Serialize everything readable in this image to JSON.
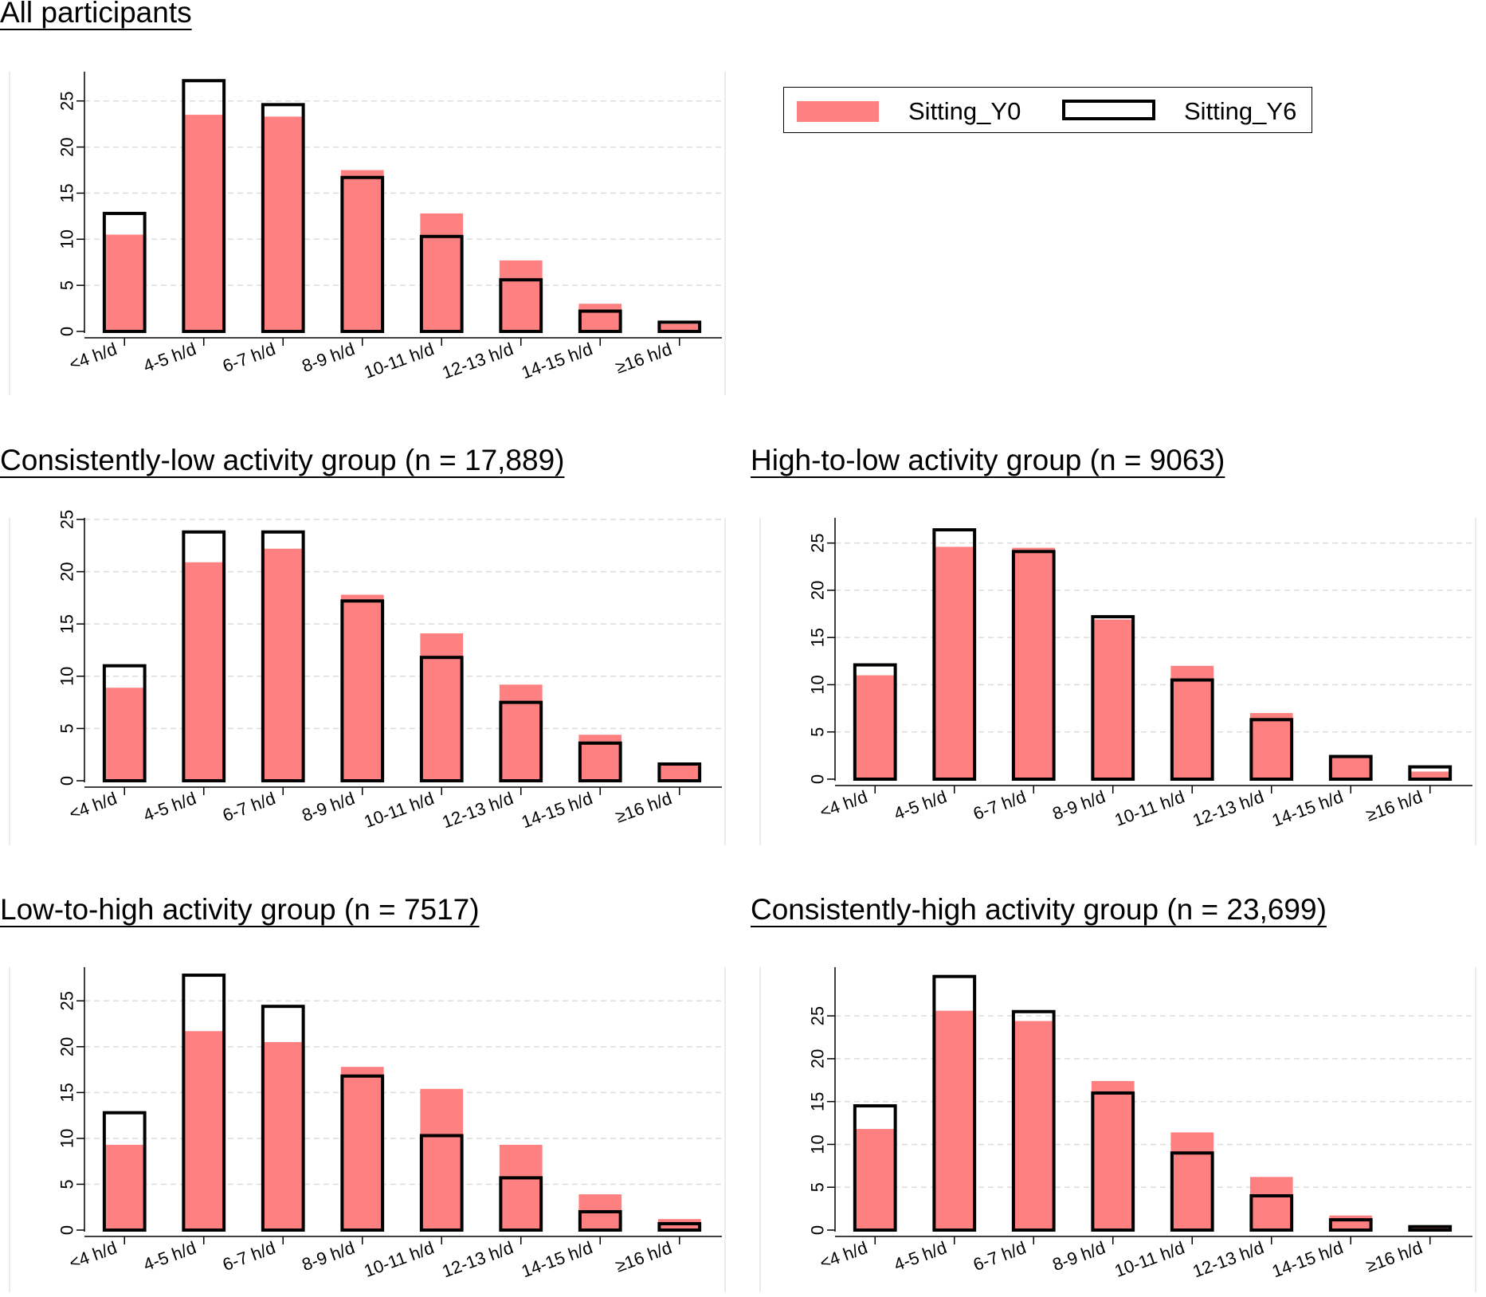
{
  "figure": {
    "panels": [
      {
        "title": "All participants"
      },
      {
        "title": "Consistently-low activity group (n = 17,889)"
      },
      {
        "title": "High-to-low activity group (n = 9063)"
      },
      {
        "title": "Low-to-high activity group (n = 7517)"
      },
      {
        "title": "Consistently-high activity group (n = 23,699)"
      }
    ],
    "legend": {
      "items": [
        "Sitting_Y0",
        "Sitting_Y6"
      ]
    },
    "colors": {
      "Sitting_Y0": "#ff8080",
      "Sitting_Y6_outline": "#000000",
      "grid": "#dcdcdc"
    }
  },
  "chart_data": [
    {
      "type": "bar",
      "title": "All participants",
      "categories": [
        "<4 h/d",
        "4-5 h/d",
        "6-7 h/d",
        "8-9 h/d",
        "10-11 h/d",
        "12-13 h/d",
        "14-15 h/d",
        "≥16 h/d"
      ],
      "series": [
        {
          "name": "Sitting_Y0",
          "values": [
            10.5,
            23.5,
            23.3,
            17.5,
            12.8,
            7.7,
            3.0,
            0.8
          ]
        },
        {
          "name": "Sitting_Y6",
          "values": [
            12.8,
            27.2,
            24.6,
            16.7,
            10.3,
            5.6,
            2.2,
            1.0
          ]
        }
      ],
      "yticks": [
        0,
        5,
        10,
        15,
        20,
        25
      ],
      "ylim": [
        0,
        28
      ],
      "grid": true
    },
    {
      "type": "bar",
      "title": "Consistently-low activity group (n = 17,889)",
      "categories": [
        "<4 h/d",
        "4-5 h/d",
        "6-7 h/d",
        "8-9 h/d",
        "10-11 h/d",
        "12-13 h/d",
        "14-15 h/d",
        "≥16 h/d"
      ],
      "series": [
        {
          "name": "Sitting_Y0",
          "values": [
            8.9,
            20.9,
            22.2,
            17.8,
            14.1,
            9.2,
            4.4,
            1.6
          ]
        },
        {
          "name": "Sitting_Y6",
          "values": [
            11.0,
            23.8,
            23.8,
            17.2,
            11.8,
            7.5,
            3.6,
            1.6
          ]
        }
      ],
      "yticks": [
        0,
        5,
        10,
        15,
        20,
        25
      ],
      "ylim": [
        0,
        25
      ],
      "grid": true
    },
    {
      "type": "bar",
      "title": "High-to-low activity group (n = 9063)",
      "categories": [
        "<4 h/d",
        "4-5 h/d",
        "6-7 h/d",
        "8-9 h/d",
        "10-11 h/d",
        "12-13 h/d",
        "14-15 h/d",
        "≥16 h/d"
      ],
      "series": [
        {
          "name": "Sitting_Y0",
          "values": [
            11.0,
            24.6,
            24.5,
            16.9,
            12.0,
            7.0,
            2.4,
            0.8
          ]
        },
        {
          "name": "Sitting_Y6",
          "values": [
            12.1,
            26.4,
            24.1,
            17.2,
            10.5,
            6.3,
            2.4,
            1.3
          ]
        }
      ],
      "yticks": [
        0,
        5,
        10,
        15,
        20,
        25
      ],
      "ylim": [
        0,
        27.5
      ],
      "grid": true
    },
    {
      "type": "bar",
      "title": "Low-to-high activity group (n = 7517)",
      "categories": [
        "<4 h/d",
        "4-5 h/d",
        "6-7 h/d",
        "8-9 h/d",
        "10-11 h/d",
        "12-13 h/d",
        "14-15 h/d",
        "≥16 h/d"
      ],
      "series": [
        {
          "name": "Sitting_Y0",
          "values": [
            9.3,
            21.7,
            20.5,
            17.8,
            15.4,
            9.3,
            3.9,
            1.2
          ]
        },
        {
          "name": "Sitting_Y6",
          "values": [
            12.8,
            27.8,
            24.4,
            16.8,
            10.3,
            5.7,
            2.0,
            0.7
          ]
        }
      ],
      "yticks": [
        0,
        5,
        10,
        15,
        20,
        25
      ],
      "ylim": [
        0,
        28.5
      ],
      "grid": true
    },
    {
      "type": "bar",
      "title": "Consistently-high activity group (n = 23,699)",
      "categories": [
        "<4 h/d",
        "4-5 h/d",
        "6-7 h/d",
        "8-9 h/d",
        "10-11 h/d",
        "12-13 h/d",
        "14-15 h/d",
        "≥16 h/d"
      ],
      "series": [
        {
          "name": "Sitting_Y0",
          "values": [
            11.8,
            25.6,
            24.4,
            17.4,
            11.4,
            6.2,
            1.7,
            0.4
          ]
        },
        {
          "name": "Sitting_Y6",
          "values": [
            14.5,
            29.6,
            25.5,
            16.0,
            9.0,
            4.0,
            1.2,
            0.4
          ]
        }
      ],
      "yticks": [
        0,
        5,
        10,
        15,
        20,
        25
      ],
      "ylim": [
        0,
        30.5
      ],
      "grid": true
    }
  ]
}
